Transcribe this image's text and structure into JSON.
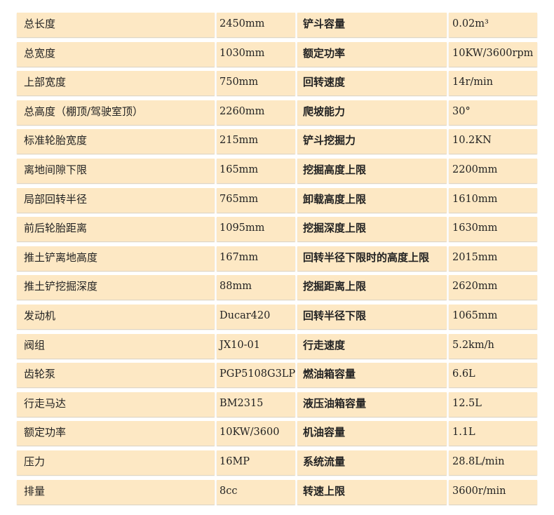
{
  "rows": [
    [
      "总长度",
      "2450mm",
      "铲斗容量",
      "0.02m³"
    ],
    [
      "总宽度",
      "1030mm",
      "额定功率",
      "10KW/3600rpm"
    ],
    [
      "上部宽度",
      "750mm",
      "回转速度",
      "14r/min"
    ],
    [
      "总高度（棚顶/驾驶室顶）",
      "2260mm",
      "爬坡能力",
      "30°"
    ],
    [
      "标准轮胎宽度",
      "215mm",
      "铲斗挖掘力",
      "10.2KN"
    ],
    [
      "离地间隙下限",
      "165mm",
      "挖掘高度上限",
      "2200mm"
    ],
    [
      "局部回转半径",
      "765mm",
      "卸载高度上限",
      "1610mm"
    ],
    [
      "前后轮胎距离",
      "1095mm",
      "挖掘深度上限",
      "1630mm"
    ],
    [
      "推土铲离地高度",
      "167mm",
      "回转半径下限时的高度上限",
      "2015mm"
    ],
    [
      "推土铲挖掘深度",
      "88mm",
      "挖掘距离上限",
      "2620mm"
    ],
    [
      "发动机",
      "Ducar420",
      "回转半径下限",
      "1065mm"
    ],
    [
      "阀组",
      "JX10-01",
      "行走速度",
      "5.2km/h"
    ],
    [
      "齿轮泵",
      "PGP5108G3LP",
      "燃油箱容量",
      "6.6L"
    ],
    [
      "行走马达",
      "BM2315",
      "液压油箱容量",
      "12.5L"
    ],
    [
      "额定功率",
      "10KW/3600",
      "机油容量",
      "1.1L"
    ],
    [
      "压力",
      "16MP",
      "系统流量",
      "28.8L/min"
    ],
    [
      "排量",
      "8cc",
      "转速上限",
      "3600r/min"
    ]
  ],
  "colors": {
    "cell_bg": "#fde8c4",
    "text": "#222222"
  }
}
